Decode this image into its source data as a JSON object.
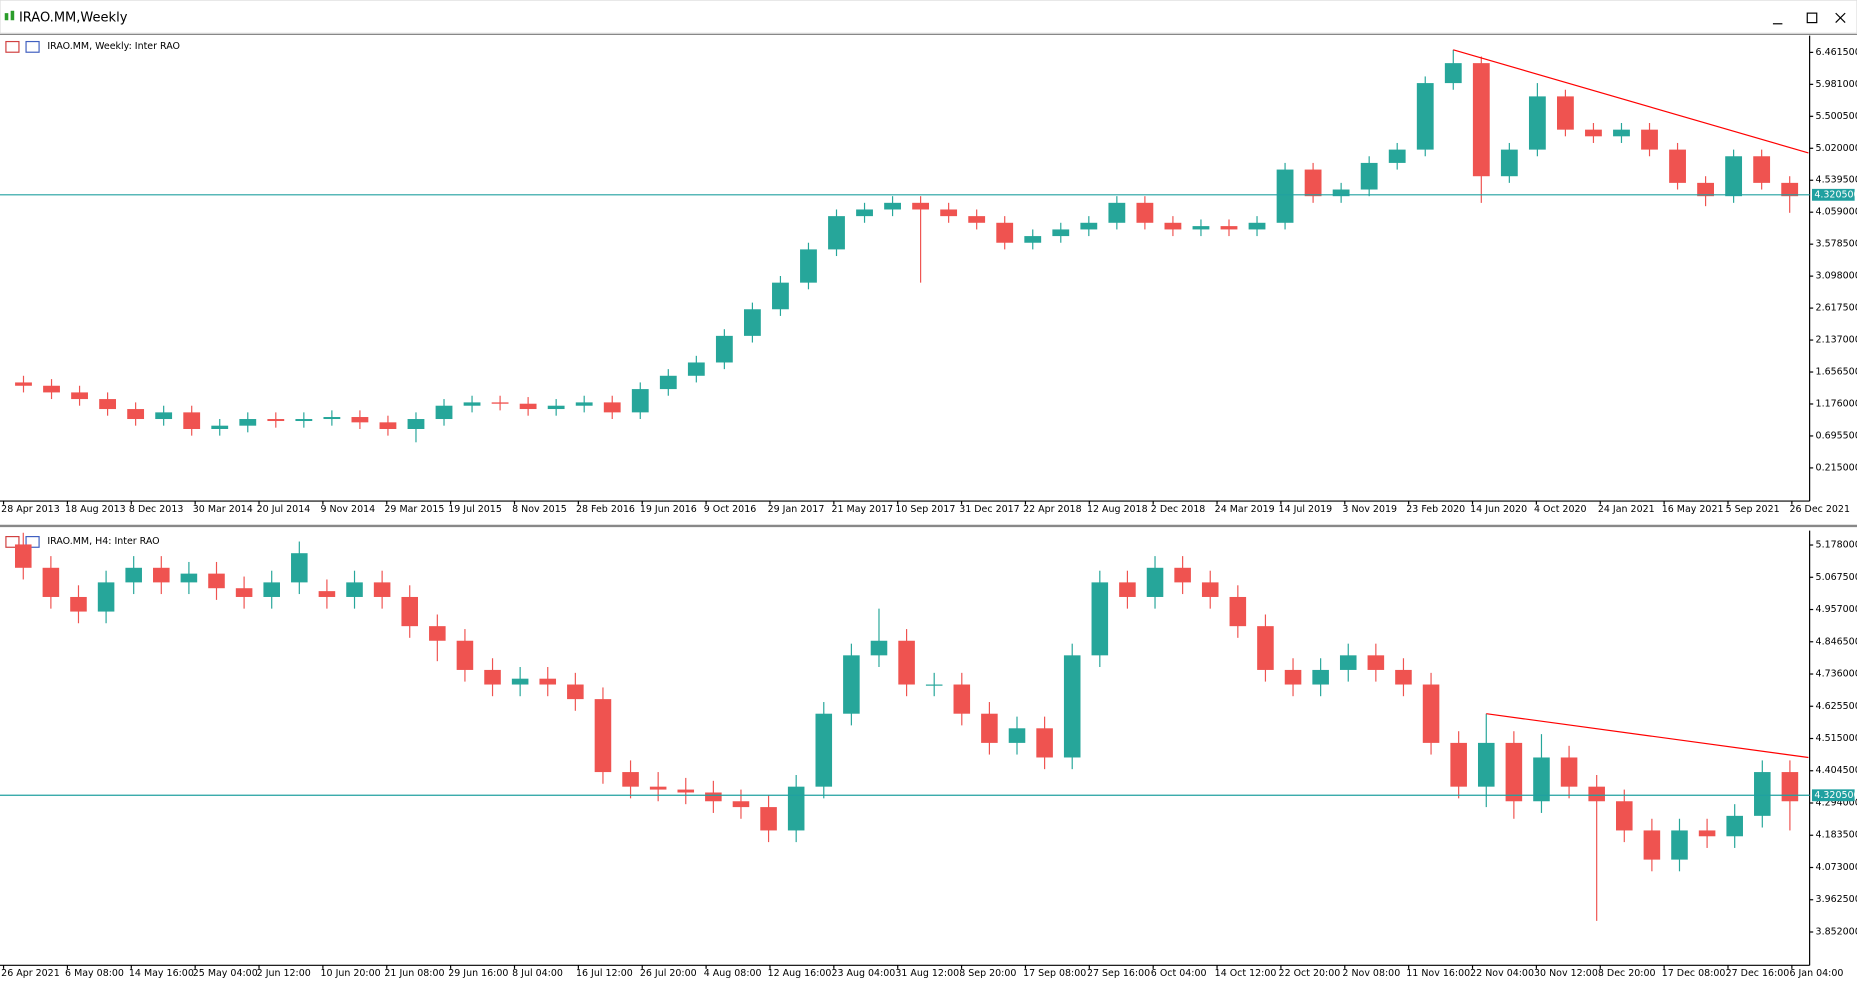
{
  "window": {
    "title": "IRAO.MM,Weekly"
  },
  "chart_data": [
    {
      "type": "candlestick",
      "title": "IRAO.MM, Weekly:  Inter RAO",
      "up_color": "#26a69a",
      "down_color": "#ef5350",
      "xticks": [
        "28 Apr 2013",
        "18 Aug 2013",
        "8 Dec 2013",
        "30 Mar 2014",
        "20 Jul 2014",
        "9 Nov 2014",
        "29 Mar 2015",
        "19 Jul 2015",
        "8 Nov 2015",
        "28 Feb 2016",
        "19 Jun 2016",
        "9 Oct 2016",
        "29 Jan 2017",
        "21 May 2017",
        "10 Sep 2017",
        "31 Dec 2017",
        "22 Apr 2018",
        "12 Aug 2018",
        "2 Dec 2018",
        "24 Mar 2019",
        "14 Jul 2019",
        "3 Nov 2019",
        "23 Feb 2020",
        "14 Jun 2020",
        "4 Oct 2020",
        "24 Jan 2021",
        "16 May 2021",
        "5 Sep 2021",
        "26 Dec 2021"
      ],
      "ylim": [
        -0.23,
        6.66
      ],
      "yticks": [
        {
          "value": 6.4615,
          "label": "6.461500"
        },
        {
          "value": 5.981,
          "label": "5.981000"
        },
        {
          "value": 5.5005,
          "label": "5.500500"
        },
        {
          "value": 5.02,
          "label": "5.020000"
        },
        {
          "value": 4.5395,
          "label": "4.539500"
        },
        {
          "value": 4.059,
          "label": "4.059000"
        },
        {
          "value": 3.5785,
          "label": "3.578500"
        },
        {
          "value": 3.098,
          "label": "3.098000"
        },
        {
          "value": 2.6175,
          "label": "2.617500"
        },
        {
          "value": 2.137,
          "label": "2.137000"
        },
        {
          "value": 1.6565,
          "label": "1.656500"
        },
        {
          "value": 1.176,
          "label": "1.176000"
        },
        {
          "value": 0.6955,
          "label": "0.695500"
        },
        {
          "value": 0.215,
          "label": "0.215000"
        }
      ],
      "open": [
        1.5,
        1.45,
        1.35,
        1.25,
        1.1,
        0.95,
        1.05,
        0.8,
        0.85,
        0.95,
        0.92,
        0.95,
        0.98,
        0.9,
        0.8,
        0.95,
        1.15,
        1.2,
        1.18,
        1.1,
        1.15,
        1.2,
        1.05,
        1.4,
        1.6,
        1.8,
        2.2,
        2.6,
        3.0,
        3.5,
        4.0,
        4.1,
        4.2,
        4.1,
        4.0,
        3.9,
        3.6,
        3.7,
        3.8,
        3.9,
        4.2,
        3.9,
        3.8,
        3.85,
        3.8,
        3.9,
        4.7,
        4.3,
        4.4,
        4.8,
        5.0,
        6.0,
        6.3,
        4.6,
        5.0,
        5.8,
        5.3,
        5.2,
        5.3,
        5.0,
        4.5,
        4.3,
        4.9,
        4.5
      ],
      "high": [
        1.6,
        1.55,
        1.45,
        1.35,
        1.2,
        1.15,
        1.15,
        0.95,
        1.05,
        1.05,
        1.05,
        1.08,
        1.08,
        1.0,
        1.05,
        1.25,
        1.3,
        1.3,
        1.28,
        1.25,
        1.3,
        1.3,
        1.5,
        1.7,
        1.9,
        2.3,
        2.7,
        3.1,
        3.6,
        4.1,
        4.2,
        4.3,
        4.3,
        4.2,
        4.1,
        4.0,
        3.8,
        3.9,
        4.0,
        4.3,
        4.3,
        4.0,
        3.95,
        3.95,
        4.0,
        4.8,
        4.8,
        4.5,
        4.9,
        5.1,
        6.1,
        6.5,
        6.4,
        5.1,
        6.0,
        5.9,
        5.4,
        5.4,
        5.4,
        5.1,
        4.6,
        5.0,
        5.0,
        4.6
      ],
      "low": [
        1.35,
        1.25,
        1.15,
        1.0,
        0.85,
        0.85,
        0.7,
        0.7,
        0.75,
        0.82,
        0.82,
        0.85,
        0.8,
        0.7,
        0.6,
        0.85,
        1.05,
        1.08,
        1.0,
        1.0,
        1.05,
        0.95,
        0.95,
        1.3,
        1.5,
        1.7,
        2.1,
        2.5,
        2.9,
        3.4,
        3.9,
        4.0,
        3.0,
        3.9,
        3.8,
        3.5,
        3.5,
        3.6,
        3.7,
        3.8,
        3.8,
        3.7,
        3.7,
        3.7,
        3.7,
        3.8,
        4.2,
        4.2,
        4.3,
        4.7,
        4.9,
        5.9,
        4.2,
        4.5,
        4.9,
        5.2,
        5.1,
        5.1,
        4.9,
        4.4,
        4.15,
        4.2,
        4.4,
        4.05
      ],
      "close": [
        1.45,
        1.35,
        1.25,
        1.1,
        0.95,
        1.05,
        0.8,
        0.85,
        0.95,
        0.92,
        0.95,
        0.98,
        0.9,
        0.8,
        0.95,
        1.15,
        1.2,
        1.18,
        1.1,
        1.15,
        1.2,
        1.05,
        1.4,
        1.6,
        1.8,
        2.2,
        2.6,
        3.0,
        3.5,
        4.0,
        4.1,
        4.2,
        4.1,
        4.0,
        3.9,
        3.6,
        3.7,
        3.8,
        3.9,
        4.2,
        3.9,
        3.8,
        3.85,
        3.8,
        3.9,
        4.7,
        4.3,
        4.4,
        4.8,
        5.0,
        6.0,
        6.3,
        4.6,
        5.0,
        5.8,
        5.3,
        5.2,
        5.3,
        5.0,
        4.5,
        4.3,
        4.9,
        4.5,
        4.3
      ],
      "hline": {
        "value": 4.3205,
        "label": "4.320500",
        "color": "#20a0a0"
      },
      "trendline": {
        "x": [
          51,
          64
        ],
        "y": [
          6.5,
          4.95
        ],
        "color": "#ff0000"
      }
    },
    {
      "type": "candlestick",
      "title": "IRAO.MM, H4:  Inter RAO",
      "up_color": "#26a69a",
      "down_color": "#ef5350",
      "xticks": [
        "26 Apr 2021",
        "6 May 08:00",
        "14 May 16:00",
        "25 May 04:00",
        "2 Jun 12:00",
        "10 Jun 20:00",
        "21 Jun 08:00",
        "29 Jun 16:00",
        "8 Jul 04:00",
        "16 Jul 12:00",
        "26 Jul 20:00",
        "4 Aug 08:00",
        "12 Aug 16:00",
        "23 Aug 04:00",
        "31 Aug 12:00",
        "8 Sep 20:00",
        "17 Sep 08:00",
        "27 Sep 16:00",
        "6 Oct 04:00",
        "14 Oct 12:00",
        "22 Oct 20:00",
        "2 Nov 08:00",
        "11 Nov 16:00",
        "22 Nov 04:00",
        "30 Nov 12:00",
        "8 Dec 20:00",
        "17 Dec 08:00",
        "27 Dec 16:00",
        "6 Jan 04:00"
      ],
      "ylim": [
        3.75,
        5.215
      ],
      "yticks": [
        {
          "value": 5.178,
          "label": "5.178000"
        },
        {
          "value": 5.0675,
          "label": "5.067500"
        },
        {
          "value": 4.957,
          "label": "4.957000"
        },
        {
          "value": 4.8465,
          "label": "4.846500"
        },
        {
          "value": 4.736,
          "label": "4.736000"
        },
        {
          "value": 4.6255,
          "label": "4.625500"
        },
        {
          "value": 4.515,
          "label": "4.515000"
        },
        {
          "value": 4.4045,
          "label": "4.404500"
        },
        {
          "value": 4.294,
          "label": "4.294000"
        },
        {
          "value": 4.1835,
          "label": "4.183500"
        },
        {
          "value": 4.073,
          "label": "4.073000"
        },
        {
          "value": 3.9625,
          "label": "3.962500"
        },
        {
          "value": 3.852,
          "label": "3.852000"
        }
      ],
      "open": [
        5.18,
        5.1,
        5.0,
        4.95,
        5.05,
        5.1,
        5.05,
        5.08,
        5.03,
        5.0,
        5.05,
        5.02,
        5.0,
        5.05,
        5.0,
        4.9,
        4.85,
        4.75,
        4.7,
        4.72,
        4.7,
        4.65,
        4.4,
        4.35,
        4.34,
        4.33,
        4.3,
        4.28,
        4.2,
        4.35,
        4.6,
        4.8,
        4.85,
        4.7,
        4.7,
        4.6,
        4.5,
        4.55,
        4.45,
        4.8,
        5.05,
        5.0,
        5.1,
        5.05,
        5.0,
        4.9,
        4.75,
        4.7,
        4.75,
        4.8,
        4.75,
        4.7,
        4.5,
        4.35,
        4.5,
        4.3,
        4.45,
        4.35,
        4.3,
        4.2,
        4.1,
        4.2,
        4.18,
        4.25,
        4.4
      ],
      "high": [
        5.22,
        5.14,
        5.04,
        5.09,
        5.14,
        5.14,
        5.12,
        5.12,
        5.07,
        5.09,
        5.19,
        5.06,
        5.09,
        5.09,
        5.04,
        4.94,
        4.89,
        4.79,
        4.76,
        4.76,
        4.74,
        4.69,
        4.44,
        4.4,
        4.38,
        4.37,
        4.34,
        4.32,
        4.39,
        4.64,
        4.84,
        4.96,
        4.89,
        4.74,
        4.74,
        4.64,
        4.59,
        4.59,
        4.84,
        5.09,
        5.09,
        5.14,
        5.14,
        5.09,
        5.04,
        4.94,
        4.79,
        4.79,
        4.84,
        4.84,
        4.79,
        4.74,
        4.54,
        4.6,
        4.54,
        4.53,
        4.49,
        4.39,
        4.34,
        4.24,
        4.24,
        4.24,
        4.29,
        4.44,
        4.44
      ],
      "low": [
        5.06,
        4.96,
        4.91,
        4.91,
        5.01,
        5.01,
        5.01,
        4.99,
        4.96,
        4.96,
        5.01,
        4.96,
        4.96,
        4.96,
        4.86,
        4.78,
        4.71,
        4.66,
        4.66,
        4.66,
        4.61,
        4.36,
        4.31,
        4.3,
        4.29,
        4.26,
        4.24,
        4.16,
        4.16,
        4.31,
        4.56,
        4.76,
        4.66,
        4.66,
        4.56,
        4.46,
        4.46,
        4.41,
        4.41,
        4.76,
        4.96,
        4.96,
        5.01,
        4.96,
        4.86,
        4.71,
        4.66,
        4.66,
        4.71,
        4.71,
        4.66,
        4.46,
        4.31,
        4.28,
        4.24,
        4.26,
        4.31,
        3.89,
        4.16,
        4.06,
        4.06,
        4.14,
        4.14,
        4.21,
        4.2
      ],
      "close": [
        5.1,
        5.0,
        4.95,
        5.05,
        5.1,
        5.05,
        5.08,
        5.03,
        5.0,
        5.05,
        5.15,
        5.0,
        5.05,
        5.0,
        4.9,
        4.85,
        4.75,
        4.7,
        4.72,
        4.7,
        4.65,
        4.4,
        4.35,
        4.34,
        4.33,
        4.3,
        4.28,
        4.2,
        4.35,
        4.6,
        4.8,
        4.85,
        4.7,
        4.7,
        4.6,
        4.5,
        4.55,
        4.45,
        4.8,
        5.05,
        5.0,
        5.1,
        5.05,
        5.0,
        4.9,
        4.75,
        4.7,
        4.75,
        4.8,
        4.75,
        4.7,
        4.5,
        4.35,
        4.5,
        4.3,
        4.45,
        4.35,
        4.3,
        4.2,
        4.1,
        4.2,
        4.18,
        4.25,
        4.4,
        4.3
      ],
      "hline": {
        "value": 4.3205,
        "label": "4.320500",
        "color": "#20a0a0"
      },
      "trendline": {
        "x": [
          53,
          66
        ],
        "y": [
          4.6,
          4.45
        ],
        "color": "#ff0000"
      }
    }
  ]
}
